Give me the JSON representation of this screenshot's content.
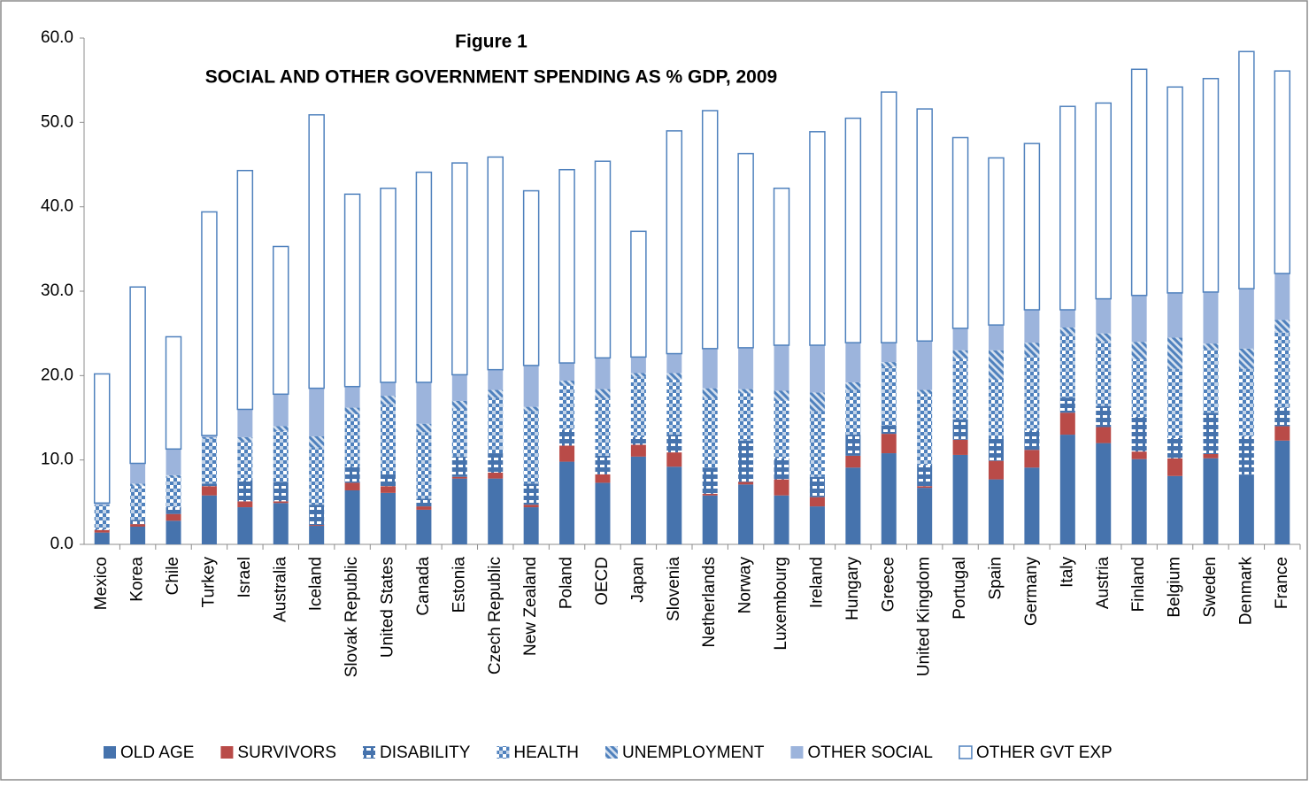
{
  "chart_data": {
    "type": "stacked-bar",
    "title": "Figure 1",
    "subtitle": "SOCIAL AND OTHER GOVERNMENT SPENDING AS % GDP, 2009",
    "categories": [
      "Mexico",
      "Korea",
      "Chile",
      "Turkey",
      "Israel",
      "Australia",
      "Iceland",
      "Slovak Republic",
      "United States",
      "Canada",
      "Estonia",
      "Czech Republic",
      "New Zealand",
      "Poland",
      "OECD",
      "Japan",
      "Slovenia",
      "Netherlands",
      "Norway",
      "Luxembourg",
      "Ireland",
      "Hungary",
      "Greece",
      "United Kingdom",
      "Portugal",
      "Spain",
      "Germany",
      "Italy",
      "Austria",
      "Finland",
      "Belgium",
      "Sweden",
      "Denmark",
      "France"
    ],
    "series": [
      {
        "name": "OLD AGE",
        "color": "#4673ad",
        "pattern": "solid",
        "values": [
          1.4,
          2.1,
          2.8,
          5.8,
          4.4,
          4.9,
          2.2,
          6.4,
          6.1,
          4.1,
          7.8,
          7.8,
          4.4,
          9.8,
          7.3,
          10.4,
          9.2,
          5.8,
          7.1,
          5.8,
          4.5,
          9.1,
          10.8,
          6.7,
          10.6,
          7.7,
          9.1,
          13.0,
          12.0,
          10.1,
          8.1,
          10.2,
          8.2,
          12.3
        ]
      },
      {
        "name": "SURVIVORS",
        "color": "#b94b48",
        "pattern": "solid",
        "values": [
          0.3,
          0.3,
          0.8,
          1.1,
          0.7,
          0.2,
          0.1,
          0.9,
          0.8,
          0.4,
          0.2,
          0.7,
          0.3,
          1.9,
          1.0,
          1.4,
          1.7,
          0.2,
          0.3,
          1.9,
          1.1,
          1.4,
          2.3,
          0.2,
          1.8,
          2.2,
          2.1,
          2.6,
          1.9,
          0.9,
          2.1,
          0.5,
          0.0,
          1.7
        ]
      },
      {
        "name": "DISABILITY",
        "color": "#4673ad",
        "pattern": "dashes",
        "values": [
          0.1,
          0.5,
          0.8,
          0.3,
          2.5,
          2.3,
          2.4,
          1.9,
          1.4,
          0.9,
          2.4,
          2.3,
          2.5,
          1.9,
          2.2,
          0.9,
          2.1,
          3.1,
          4.9,
          2.5,
          2.4,
          2.5,
          1.0,
          2.5,
          2.4,
          2.6,
          2.3,
          1.8,
          2.5,
          4.1,
          2.4,
          4.9,
          4.6,
          2.2
        ]
      },
      {
        "name": "HEALTH",
        "color": "#4f81bd",
        "pattern": "checks",
        "values": [
          2.9,
          4.0,
          3.5,
          5.3,
          4.6,
          6.0,
          6.8,
          6.2,
          8.3,
          7.9,
          5.6,
          6.6,
          8.6,
          5.2,
          6.7,
          7.2,
          6.5,
          8.2,
          5.6,
          6.8,
          7.8,
          5.3,
          6.9,
          8.4,
          7.2,
          7.0,
          8.8,
          7.5,
          7.7,
          6.8,
          8.2,
          7.5,
          8.0,
          8.9
        ]
      },
      {
        "name": "UNEMPLOYMENT",
        "color": "#4f81bd",
        "pattern": "diagonal",
        "values": [
          0.0,
          0.3,
          0.3,
          0.2,
          0.5,
          0.6,
          1.3,
          0.8,
          1.0,
          1.0,
          1.0,
          0.9,
          0.5,
          0.6,
          1.2,
          0.4,
          0.8,
          1.2,
          0.5,
          1.2,
          2.2,
          0.9,
          0.6,
          0.5,
          1.0,
          3.5,
          1.6,
          0.8,
          0.9,
          2.1,
          3.7,
          0.7,
          2.4,
          1.5
        ]
      },
      {
        "name": "OTHER SOCIAL",
        "color": "#9cb4dc",
        "pattern": "solid",
        "values": [
          0.2,
          2.4,
          3.1,
          0.2,
          3.3,
          3.8,
          5.7,
          2.5,
          1.6,
          4.9,
          3.1,
          2.4,
          4.9,
          2.1,
          3.7,
          1.9,
          2.3,
          4.7,
          4.9,
          5.4,
          5.6,
          4.7,
          2.3,
          5.8,
          2.6,
          3.0,
          3.9,
          2.1,
          4.1,
          5.5,
          5.3,
          6.1,
          7.1,
          5.5
        ]
      },
      {
        "name": "OTHER GVT EXP",
        "color": "#4f81bd",
        "pattern": "outline",
        "values": [
          15.3,
          20.9,
          13.3,
          26.5,
          28.3,
          17.5,
          32.4,
          22.8,
          23.0,
          24.9,
          25.1,
          25.2,
          20.7,
          22.9,
          23.3,
          14.9,
          26.4,
          28.2,
          23.0,
          18.6,
          25.3,
          26.6,
          29.7,
          27.5,
          22.6,
          19.8,
          19.7,
          24.1,
          23.2,
          26.8,
          24.4,
          25.3,
          28.1,
          24.0
        ]
      }
    ],
    "ylim": [
      0,
      60
    ],
    "yticks": [
      {
        "value": 0,
        "label": "0.0"
      },
      {
        "value": 10,
        "label": "10.0"
      },
      {
        "value": 20,
        "label": "20.0"
      },
      {
        "value": 30,
        "label": "30.0"
      },
      {
        "value": 40,
        "label": "40.0"
      },
      {
        "value": 50,
        "label": "50.0"
      },
      {
        "value": 60,
        "label": "60.0"
      }
    ],
    "grid": false,
    "legend": "bottom"
  }
}
